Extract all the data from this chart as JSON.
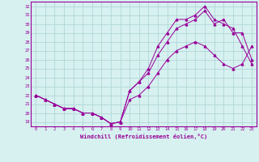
{
  "xlabel": "Windchill (Refroidissement éolien,°C)",
  "xlim": [
    -0.5,
    23.5
  ],
  "ylim": [
    18.5,
    32.5
  ],
  "yticks": [
    19,
    20,
    21,
    22,
    23,
    24,
    25,
    26,
    27,
    28,
    29,
    30,
    31,
    32
  ],
  "xticks": [
    0,
    1,
    2,
    3,
    4,
    5,
    6,
    7,
    8,
    9,
    10,
    11,
    12,
    13,
    14,
    15,
    16,
    17,
    18,
    19,
    20,
    21,
    22,
    23
  ],
  "bg_color": "#d7f0f0",
  "grid_color": "#b0d8d8",
  "line_color": "#990099",
  "line1_x": [
    0,
    1,
    2,
    3,
    4,
    5,
    6,
    7,
    8,
    9,
    10,
    11,
    12,
    13,
    14,
    15,
    16,
    17,
    18,
    19,
    20,
    21,
    22,
    23
  ],
  "line1_y": [
    22.0,
    21.5,
    21.0,
    20.5,
    20.5,
    20.0,
    20.0,
    19.5,
    18.8,
    19.0,
    21.5,
    22.0,
    23.0,
    24.5,
    26.0,
    27.0,
    27.5,
    28.0,
    27.5,
    26.5,
    25.5,
    25.0,
    25.5,
    27.5
  ],
  "line2_x": [
    0,
    1,
    2,
    3,
    4,
    5,
    6,
    7,
    8,
    9,
    10,
    11,
    12,
    13,
    14,
    15,
    16,
    17,
    18,
    19,
    20,
    21,
    22,
    23
  ],
  "line2_y": [
    22.0,
    21.5,
    21.0,
    20.5,
    20.5,
    20.0,
    20.0,
    19.5,
    18.8,
    19.0,
    22.5,
    23.5,
    24.5,
    26.5,
    28.0,
    29.5,
    30.0,
    30.5,
    31.5,
    30.0,
    30.5,
    29.0,
    29.0,
    26.0
  ],
  "line3_x": [
    0,
    1,
    2,
    3,
    4,
    5,
    6,
    7,
    8,
    9,
    10,
    11,
    12,
    13,
    14,
    15,
    16,
    17,
    18,
    19,
    20,
    21,
    22,
    23
  ],
  "line3_y": [
    22.0,
    21.5,
    21.0,
    20.5,
    20.5,
    20.0,
    20.0,
    19.5,
    18.8,
    19.0,
    22.5,
    23.5,
    25.0,
    27.5,
    29.0,
    30.5,
    30.5,
    31.0,
    32.0,
    30.5,
    30.0,
    29.5,
    27.5,
    25.5
  ]
}
